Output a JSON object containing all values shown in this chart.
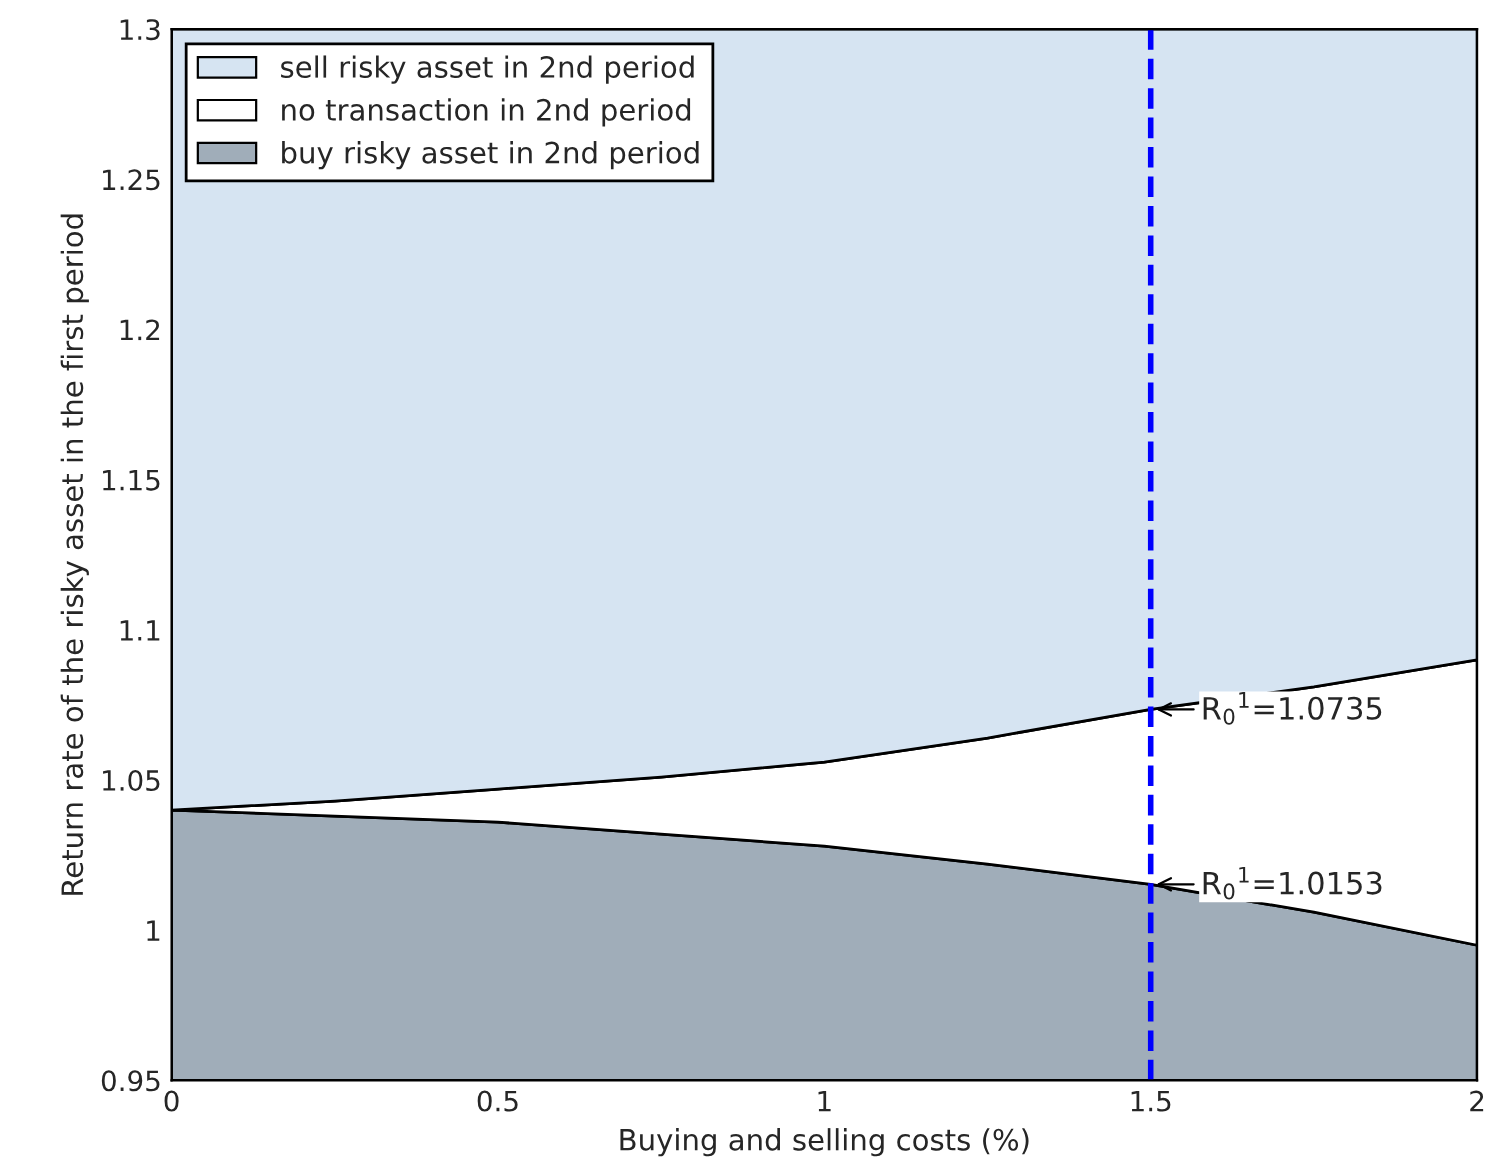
{
  "chart_data": {
    "type": "area",
    "xlabel": "Buying and selling costs (%)",
    "ylabel": "Return rate of the risky asset in the first period",
    "x": [
      0,
      0.25,
      0.5,
      0.75,
      1,
      1.25,
      1.5,
      1.75,
      2
    ],
    "series": [
      {
        "name": "buy risky asset in 2nd period",
        "color": "#a0adb9",
        "values": [
          1.04,
          1.038,
          1.036,
          1.032,
          1.028,
          1.022,
          1.0153,
          1.006,
          0.995
        ]
      },
      {
        "name": "no transaction in 2nd period",
        "color": "#ffffff",
        "values": [
          1.04,
          1.043,
          1.047,
          1.051,
          1.056,
          1.064,
          1.0735,
          1.081,
          1.09
        ]
      },
      {
        "name": "sell risky asset in 2nd period",
        "color": "#d6e4f2",
        "values": [
          1.3,
          1.3,
          1.3,
          1.3,
          1.3,
          1.3,
          1.3,
          1.3,
          1.3
        ]
      }
    ],
    "xlim": [
      0,
      2
    ],
    "ylim": [
      0.95,
      1.3
    ],
    "xticks": [
      0,
      0.5,
      1,
      1.5,
      2
    ],
    "yticks": [
      0.95,
      1,
      1.05,
      1.1,
      1.15,
      1.2,
      1.25,
      1.3
    ],
    "ref_lines": [
      {
        "axis": "x",
        "value": 1.5,
        "color": "#0000ff",
        "line_style": "dashed"
      }
    ],
    "annotations": [
      {
        "text": "R$_{0}$$^{1}$=1.0735",
        "x": 1.5,
        "y": 1.0735
      },
      {
        "text": "R$_{0}$$^{1}$=1.0153",
        "x": 1.5,
        "y": 1.0153
      }
    ],
    "legend": "top left"
  }
}
